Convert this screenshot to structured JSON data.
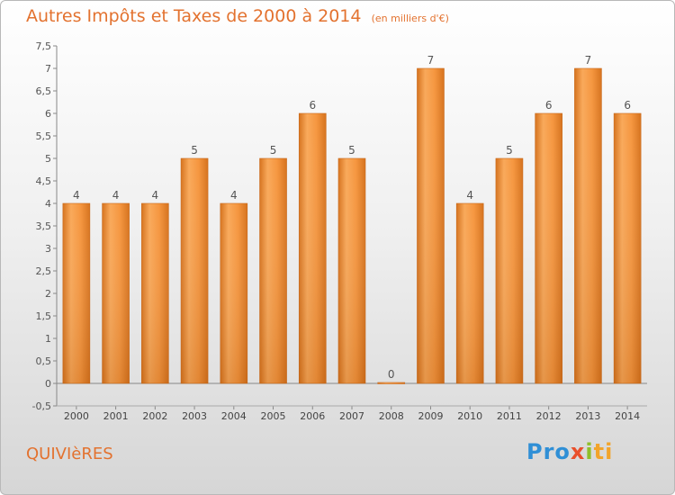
{
  "header": {
    "title": "Autres Impôts et Taxes de 2000 à 2014",
    "unit": "(en milliers d'€)"
  },
  "footer": {
    "commune": "QUIVIèRES",
    "logo": [
      "Pro",
      "x",
      "i",
      "ti"
    ]
  },
  "colors": {
    "title": "#e3722f",
    "bar_light": "#f9a95a",
    "bar_dark": "#d6731e"
  },
  "chart_data": {
    "type": "bar",
    "title": "Autres Impôts et Taxes de 2000 à 2014",
    "xlabel": "",
    "ylabel": "",
    "categories": [
      "2000",
      "2001",
      "2002",
      "2003",
      "2004",
      "2005",
      "2006",
      "2007",
      "2008",
      "2009",
      "2010",
      "2011",
      "2012",
      "2013",
      "2014"
    ],
    "values": [
      4,
      4,
      4,
      5,
      4,
      5,
      6,
      5,
      0,
      7,
      4,
      5,
      6,
      7,
      6
    ],
    "data_labels": [
      "4",
      "4",
      "4",
      "5",
      "4",
      "5",
      "6",
      "5",
      "0",
      "7",
      "4",
      "5",
      "6",
      "7",
      "6"
    ],
    "ylim": [
      -0.5,
      7.5
    ],
    "yticks": [
      -0.5,
      0,
      0.5,
      1,
      1.5,
      2,
      2.5,
      3,
      3.5,
      4,
      4.5,
      5,
      5.5,
      6,
      6.5,
      7,
      7.5
    ],
    "ytick_labels": [
      "-0,5",
      "0",
      "0,5",
      "1",
      "1,5",
      "2",
      "2,5",
      "3",
      "3,5",
      "4",
      "4,5",
      "5",
      "5,5",
      "6",
      "6,5",
      "7",
      "7,5"
    ],
    "grid": false,
    "legend": "none"
  }
}
